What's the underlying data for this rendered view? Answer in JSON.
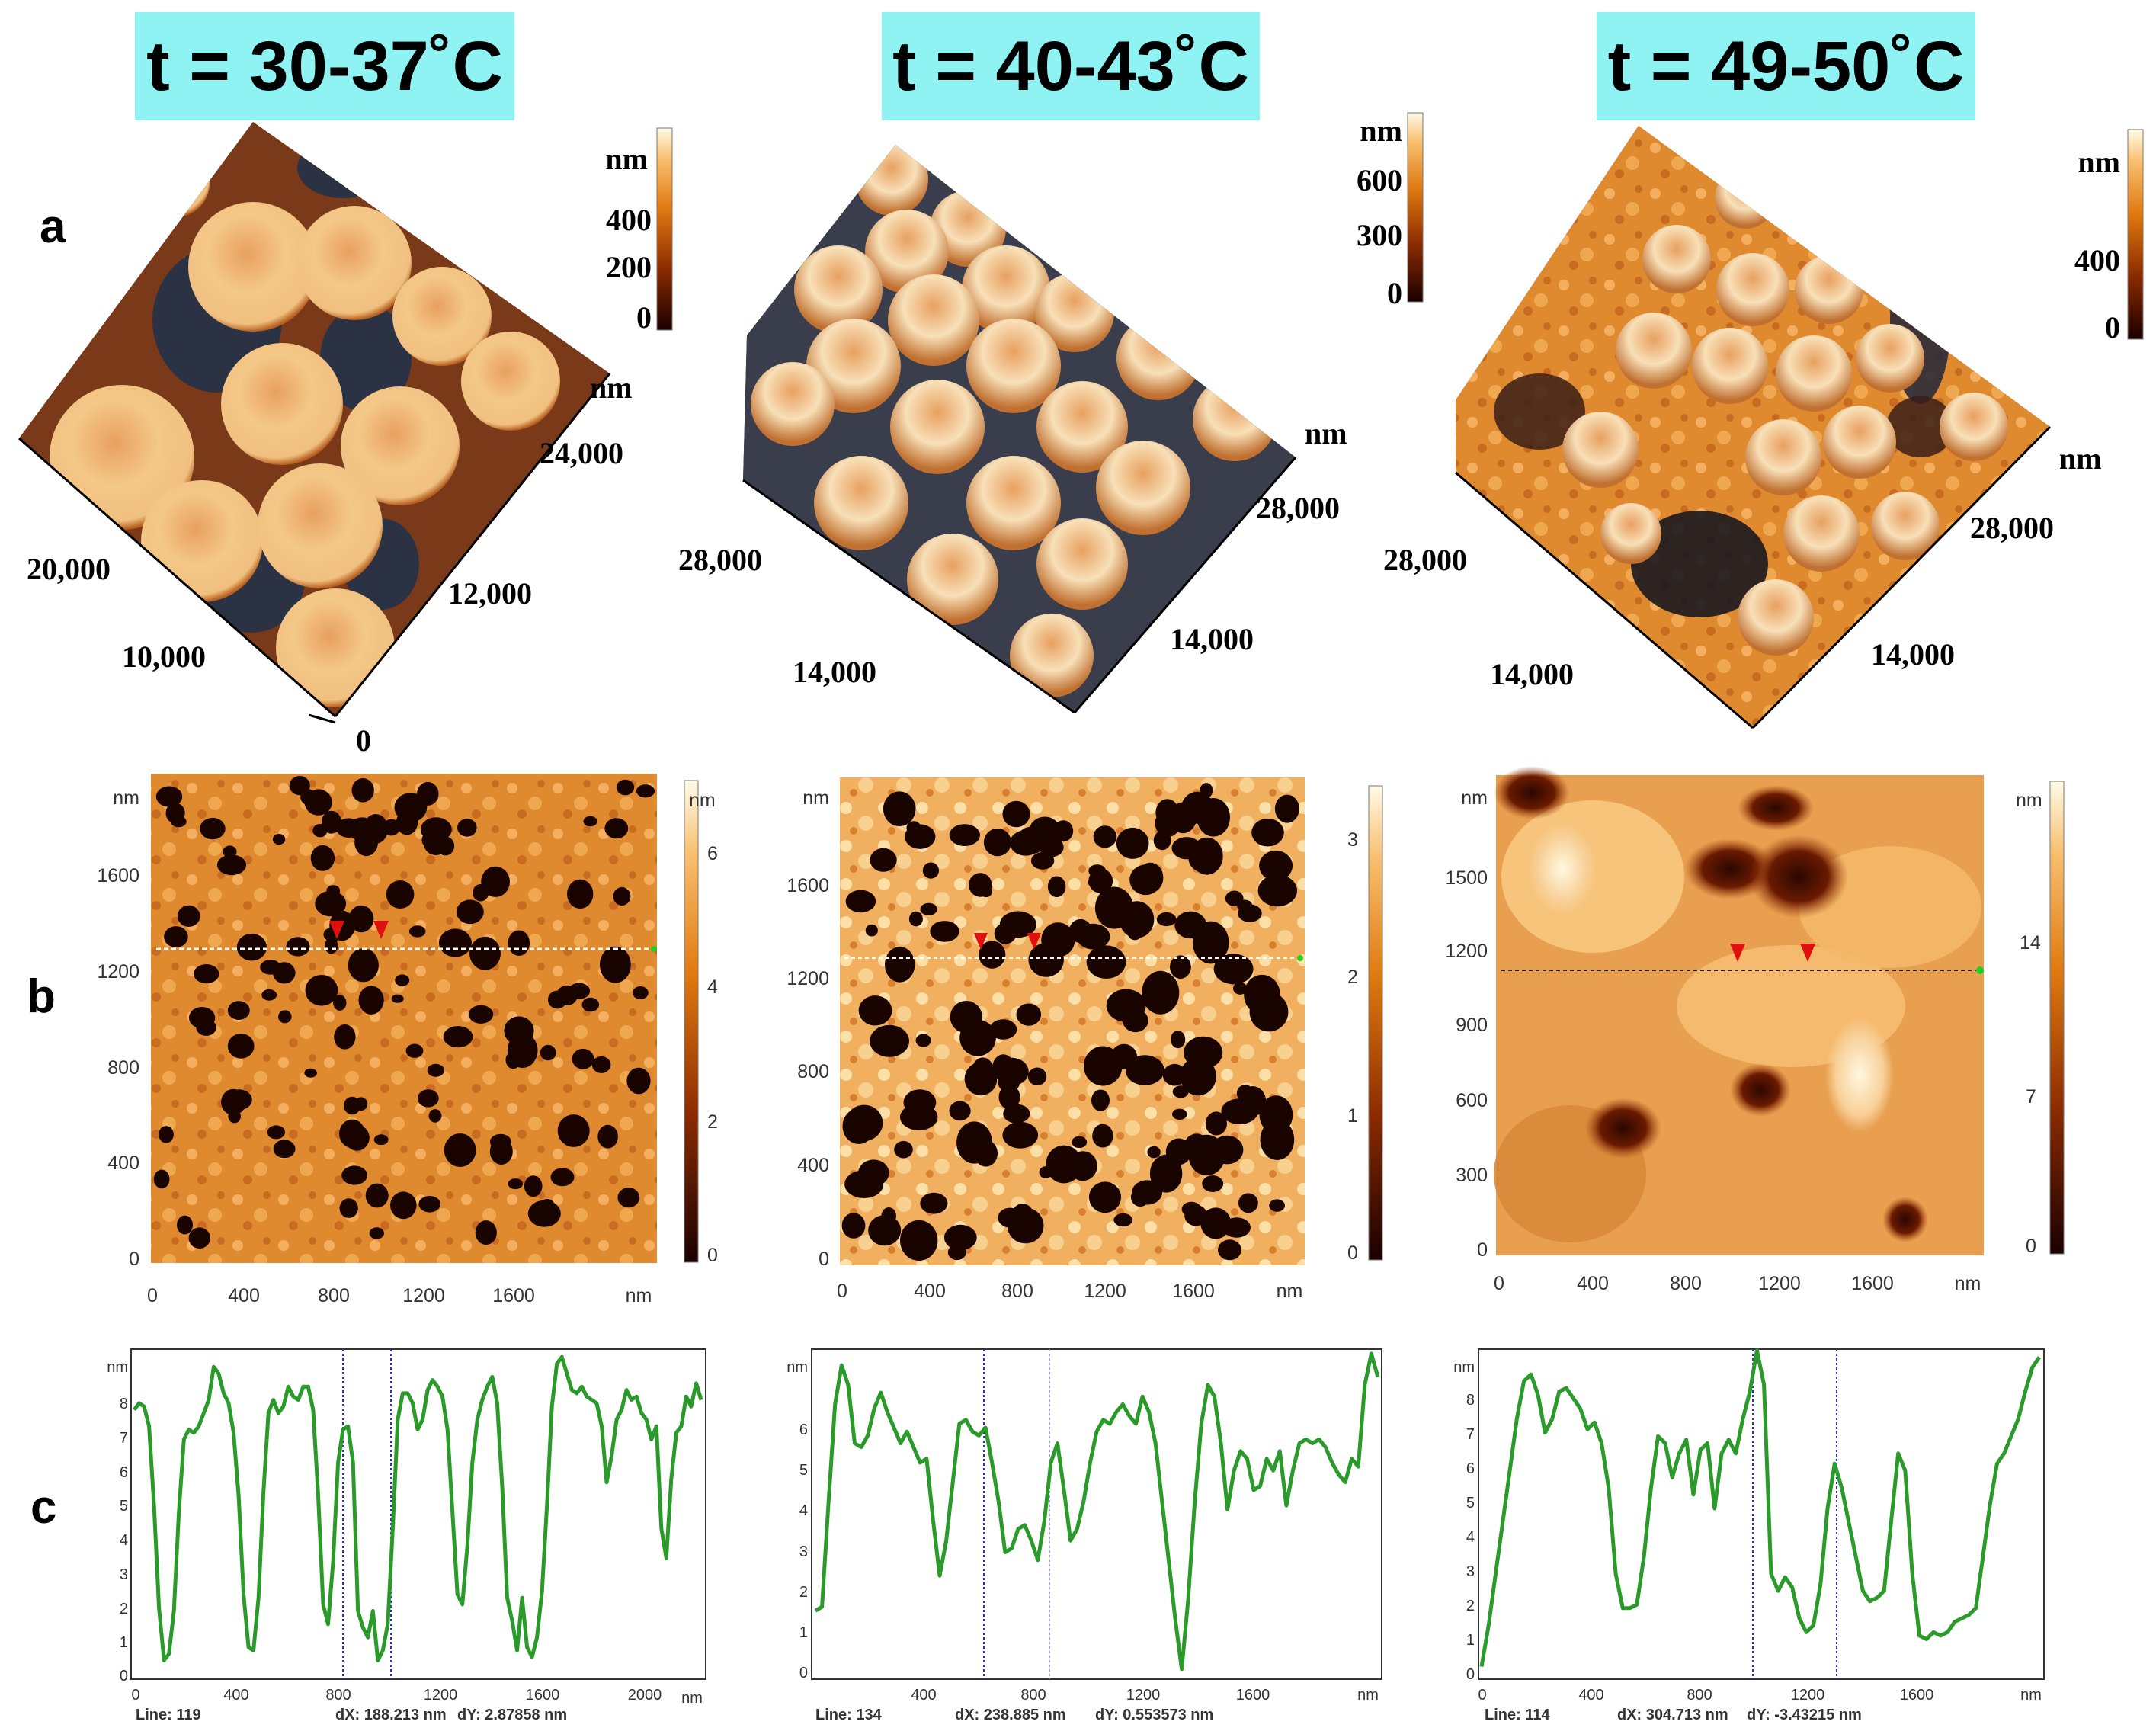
{
  "columns": [
    {
      "header": "t = 30-37˚C",
      "a": {
        "colorbar": {
          "unit": "nm",
          "ticks": [
            "400",
            "200",
            "0"
          ]
        },
        "axis_right": {
          "unit": "nm",
          "ticks": [
            "24,000",
            "12,000"
          ]
        },
        "axis_left": {
          "ticks": [
            "20,000",
            "10,000"
          ]
        },
        "origin": "0"
      },
      "b": {
        "y_unit": "nm",
        "y_ticks": [
          "1600",
          "1200",
          "800",
          "400",
          "0"
        ],
        "x_ticks": [
          "0",
          "400",
          "800",
          "1200",
          "1600"
        ],
        "x_unit": "nm",
        "colorbar": {
          "unit": "nm",
          "ticks": [
            "6",
            "4",
            "2",
            "0"
          ]
        }
      },
      "c": {
        "y_unit": "nm",
        "y_ticks": [
          "8",
          "7",
          "6",
          "5",
          "4",
          "3",
          "2",
          "1",
          "0"
        ],
        "x_ticks": [
          "0",
          "400",
          "800",
          "1200",
          "1600",
          "2000"
        ],
        "x_unit": "nm",
        "footer": {
          "line": "Line: 119",
          "dx": "dX: 188.213 nm",
          "dy": "dY:  2.87858 nm"
        },
        "profile": [
          8.1,
          8.3,
          8.2,
          7.6,
          5.2,
          2.1,
          0.5,
          0.7,
          2.0,
          5.0,
          7.2,
          7.5,
          7.4,
          7.6,
          8.0,
          8.4,
          9.4,
          9.2,
          8.6,
          8.3,
          7.4,
          5.5,
          2.5,
          0.9,
          0.8,
          2.4,
          5.6,
          8.0,
          8.4,
          8.0,
          8.2,
          8.8,
          8.5,
          8.4,
          8.8,
          8.8,
          8.1,
          5.5,
          2.2,
          1.6,
          3.5,
          6.5,
          7.5,
          7.6,
          6.5,
          2.0,
          1.5,
          1.2,
          2.0,
          0.5,
          0.8,
          1.6,
          4.5,
          7.8,
          8.6,
          8.6,
          8.3,
          7.5,
          7.8,
          8.7,
          9.0,
          8.8,
          8.5,
          7.5,
          5.0,
          2.5,
          2.2,
          4.0,
          6.5,
          7.8,
          8.4,
          8.8,
          9.1,
          8.3,
          5.8,
          2.4,
          1.7,
          0.8,
          2.4,
          0.9,
          0.6,
          1.2,
          2.6,
          5.2,
          8.2,
          9.5,
          9.7,
          9.2,
          8.7,
          8.6,
          8.8,
          8.5,
          8.4,
          8.3,
          7.6,
          5.9,
          6.7,
          7.8,
          8.1,
          8.7,
          8.4,
          8.5,
          8.0,
          7.8,
          7.2,
          7.6,
          4.5,
          3.6,
          6.0,
          7.4,
          7.6,
          8.5,
          8.2,
          8.9,
          8.4
        ],
        "markers_x": [
          830,
          1020
        ]
      }
    },
    {
      "header": "t = 40-43˚C",
      "a": {
        "colorbar": {
          "unit": "nm",
          "ticks": [
            "600",
            "300",
            "0"
          ]
        },
        "axis_right": {
          "unit": "nm",
          "ticks": [
            "28,000",
            "14,000"
          ]
        },
        "axis_left": {
          "ticks": [
            "28,000",
            "14,000"
          ]
        }
      },
      "b": {
        "y_unit": "nm",
        "y_ticks": [
          "1600",
          "1200",
          "800",
          "400",
          "0"
        ],
        "x_ticks": [
          "0",
          "400",
          "800",
          "1200",
          "1600"
        ],
        "x_unit": "nm",
        "colorbar": {
          "unit": "",
          "ticks": [
            "3",
            "2",
            "1",
            "0"
          ]
        }
      },
      "c": {
        "y_unit": "nm",
        "y_ticks": [
          "6",
          "5",
          "4",
          "3",
          "2",
          "1",
          "0"
        ],
        "x_ticks": [
          "400",
          "800",
          "1200",
          "1600"
        ],
        "x_unit": "nm",
        "footer": {
          "line": "Line: 134",
          "dx": "dX: 238.885 nm",
          "dy": "dY: 0.553573 nm"
        },
        "profile": [
          1.7,
          1.8,
          4.5,
          7.0,
          8.0,
          7.5,
          6.0,
          5.9,
          6.2,
          6.9,
          7.3,
          6.8,
          6.4,
          6.0,
          6.3,
          5.9,
          5.5,
          5.6,
          4.0,
          2.6,
          3.5,
          5.0,
          6.5,
          6.6,
          6.3,
          6.2,
          6.4,
          5.5,
          4.5,
          3.2,
          3.3,
          3.8,
          3.9,
          3.5,
          3.0,
          4.0,
          5.5,
          6.0,
          4.8,
          3.5,
          3.8,
          4.5,
          5.5,
          6.3,
          6.6,
          6.5,
          6.8,
          7.0,
          6.7,
          6.5,
          7.2,
          6.8,
          6.0,
          4.5,
          3.0,
          1.5,
          0.2,
          2.0,
          4.5,
          6.5,
          7.5,
          7.2,
          6.0,
          4.3,
          5.3,
          5.8,
          5.6,
          4.8,
          4.9,
          5.6,
          5.3,
          5.8,
          4.4,
          5.3,
          6.0,
          6.1,
          6.0,
          6.1,
          5.9,
          5.5,
          5.2,
          5.0,
          5.6,
          5.4,
          7.5,
          8.3,
          7.7
        ]
      }
    },
    {
      "header": "t = 49-50˚C",
      "a": {
        "colorbar": {
          "unit": "nm",
          "ticks": [
            "400",
            "0"
          ]
        },
        "axis_right": {
          "unit": "nm",
          "ticks": [
            "28,000",
            "14,000"
          ]
        },
        "axis_left": {
          "ticks": [
            "28,000",
            "14,000"
          ]
        }
      },
      "b": {
        "y_unit": "nm",
        "y_ticks": [
          "1500",
          "1200",
          "900",
          "600",
          "300",
          "0"
        ],
        "x_ticks": [
          "0",
          "400",
          "800",
          "1200",
          "1600"
        ],
        "x_unit": "nm",
        "colorbar": {
          "unit": "nm",
          "ticks": [
            "14",
            "7",
            "0"
          ]
        }
      },
      "c": {
        "y_unit": "nm",
        "y_ticks": [
          "8",
          "7",
          "6",
          "5",
          "4",
          "3",
          "2",
          "1",
          "0"
        ],
        "x_ticks": [
          "0",
          "400",
          "800",
          "1200",
          "1600"
        ],
        "x_unit": "nm",
        "footer": {
          "line": "Line: 114",
          "dx": "dX: 304.713 nm",
          "dy": "dY: -3.43215 nm"
        },
        "profile": [
          0.3,
          1.5,
          3.0,
          4.5,
          6.0,
          7.5,
          8.6,
          8.8,
          8.2,
          7.1,
          7.5,
          8.3,
          8.4,
          8.1,
          7.8,
          7.2,
          7.4,
          6.8,
          5.5,
          3.0,
          2.0,
          2.0,
          2.1,
          3.5,
          5.5,
          7.0,
          6.8,
          5.8,
          6.5,
          6.9,
          5.3,
          6.6,
          6.8,
          4.9,
          6.5,
          6.9,
          6.5,
          7.5,
          8.3,
          9.5,
          8.5,
          3.0,
          2.5,
          2.9,
          2.6,
          1.7,
          1.3,
          1.5,
          2.7,
          4.9,
          6.2,
          5.5,
          4.5,
          3.5,
          2.5,
          2.2,
          2.3,
          2.5,
          4.5,
          6.5,
          6.0,
          3.0,
          1.2,
          1.1,
          1.3,
          1.2,
          1.3,
          1.6,
          1.7,
          1.8,
          2.0,
          3.5,
          5.0,
          6.2,
          6.5,
          7.0,
          7.5,
          8.3,
          9.0,
          9.3
        ]
      }
    }
  ],
  "row_labels": [
    "a",
    "b",
    "c"
  ]
}
